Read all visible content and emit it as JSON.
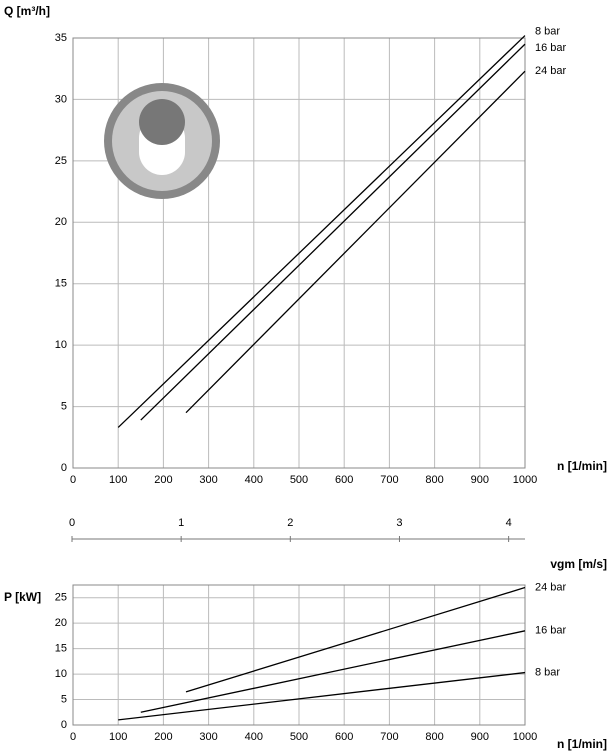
{
  "chart_data": [
    {
      "type": "line",
      "ylabel": "Q [m³/h]",
      "xlabel": "n [1/min]",
      "xlim": [
        0,
        1000
      ],
      "xticks": [
        0,
        100,
        200,
        300,
        400,
        500,
        600,
        700,
        800,
        900,
        1000
      ],
      "ylim": [
        0,
        35
      ],
      "yticks": [
        0,
        5,
        10,
        15,
        20,
        25,
        30,
        35
      ],
      "grid": true,
      "series": [
        {
          "name": "8 bar",
          "color": "#000000",
          "x": [
            100,
            1000
          ],
          "values": [
            3.3,
            35.2
          ]
        },
        {
          "name": "16 bar",
          "color": "#000000",
          "x": [
            150,
            1000
          ],
          "values": [
            3.9,
            34.5
          ]
        },
        {
          "name": "24 bar",
          "color": "#000000",
          "x": [
            250,
            1000
          ],
          "values": [
            4.5,
            32.3
          ]
        }
      ]
    },
    {
      "type": "axis",
      "xlabel": "vgm [m/s]",
      "xlim": [
        0,
        4.15
      ],
      "xticks": [
        0,
        1,
        2,
        3,
        4
      ]
    },
    {
      "type": "line",
      "ylabel": "P [kW]",
      "xlabel": "n [1/min]",
      "xlim": [
        0,
        1000
      ],
      "xticks": [
        0,
        100,
        200,
        300,
        400,
        500,
        600,
        700,
        800,
        900,
        1000
      ],
      "ylim": [
        0,
        27.5
      ],
      "yticks": [
        0,
        5,
        10,
        15,
        20,
        25
      ],
      "grid": true,
      "series": [
        {
          "name": "24 bar",
          "color": "#000000",
          "x": [
            250,
            1000
          ],
          "values": [
            6.5,
            27
          ]
        },
        {
          "name": "16 bar",
          "color": "#000000",
          "x": [
            150,
            1000
          ],
          "values": [
            2.5,
            18.5
          ]
        },
        {
          "name": "8 bar",
          "color": "#000000",
          "x": [
            100,
            1000
          ],
          "values": [
            1,
            10.3
          ]
        }
      ]
    }
  ]
}
